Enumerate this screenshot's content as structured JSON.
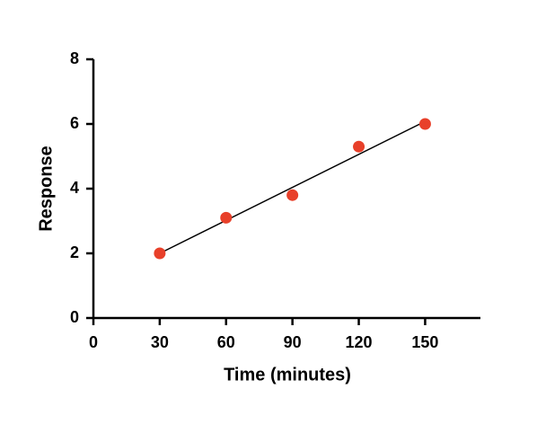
{
  "chart_data": {
    "type": "scatter",
    "xlabel": "Time (minutes)",
    "ylabel": "Response",
    "x": [
      30,
      60,
      90,
      120,
      150
    ],
    "series": [
      {
        "color": "#e8402a",
        "values": [
          2,
          3.1,
          3.8,
          5.3,
          6
        ]
      }
    ],
    "fit_line": {
      "color": "#000000",
      "x": [
        30,
        150
      ],
      "values": [
        2.0,
        6.08
      ]
    },
    "xlim": [
      0,
      175
    ],
    "xticks": [
      0,
      30,
      60,
      90,
      120,
      150
    ],
    "ylim": [
      0,
      8
    ],
    "yticks": [
      0,
      2,
      4,
      6,
      8
    ],
    "grid": false
  }
}
